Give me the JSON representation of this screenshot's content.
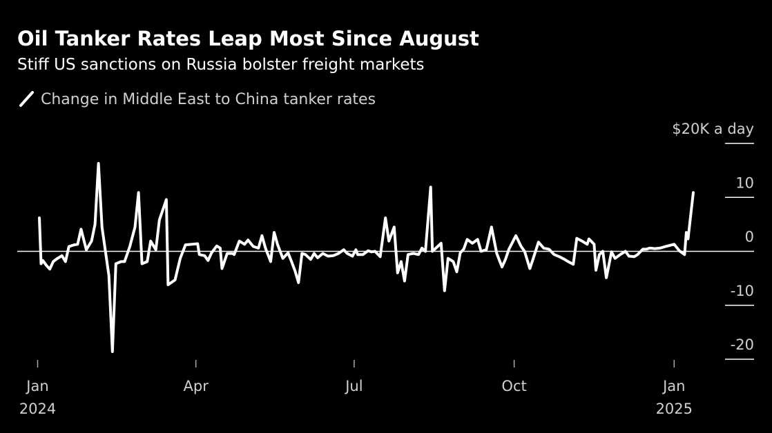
{
  "chart_data": {
    "type": "line",
    "title": "Oil Tanker Rates Leap Most Since August",
    "subtitle": "Stiff US sanctions on Russia bolster freight markets",
    "x": [
      "2024-01-02",
      "2024-01-03",
      "2024-01-04",
      "2024-01-06",
      "2024-01-08",
      "2024-01-10",
      "2024-01-12",
      "2024-01-15",
      "2024-01-17",
      "2024-01-19",
      "2024-01-22",
      "2024-01-24",
      "2024-01-26",
      "2024-01-29",
      "2024-02-01",
      "2024-02-03",
      "2024-02-05",
      "2024-02-07",
      "2024-02-09",
      "2024-02-11",
      "2024-02-13",
      "2024-02-15",
      "2024-02-18",
      "2024-02-20",
      "2024-02-23",
      "2024-02-26",
      "2024-02-28",
      "2024-03-01",
      "2024-03-04",
      "2024-03-06",
      "2024-03-09",
      "2024-03-11",
      "2024-03-15",
      "2024-03-16",
      "2024-03-20",
      "2024-03-23",
      "2024-03-26",
      "2024-04-02",
      "2024-04-03",
      "2024-04-06",
      "2024-04-08",
      "2024-04-10",
      "2024-04-13",
      "2024-04-15",
      "2024-04-16",
      "2024-04-19",
      "2024-04-22",
      "2024-04-23",
      "2024-04-26",
      "2024-04-29",
      "2024-05-01",
      "2024-05-04",
      "2024-05-07",
      "2024-05-09",
      "2024-05-11",
      "2024-05-14",
      "2024-05-16",
      "2024-05-18",
      "2024-05-21",
      "2024-05-24",
      "2024-05-26",
      "2024-05-28",
      "2024-05-30",
      "2024-06-01",
      "2024-06-03",
      "2024-06-06",
      "2024-06-08",
      "2024-06-10",
      "2024-06-13",
      "2024-06-16",
      "2024-06-19",
      "2024-06-22",
      "2024-06-25",
      "2024-06-27",
      "2024-06-30",
      "2024-07-02",
      "2024-07-03",
      "2024-07-06",
      "2024-07-09",
      "2024-07-11",
      "2024-07-13",
      "2024-07-16",
      "2024-07-19",
      "2024-07-21",
      "2024-07-24",
      "2024-07-26",
      "2024-07-28",
      "2024-07-30",
      "2024-08-01",
      "2024-08-04",
      "2024-08-07",
      "2024-08-09",
      "2024-08-11",
      "2024-08-14",
      "2024-08-15",
      "2024-08-18",
      "2024-08-20",
      "2024-08-22",
      "2024-08-24",
      "2024-08-27",
      "2024-08-29",
      "2024-08-31",
      "2024-09-02",
      "2024-09-04",
      "2024-09-07",
      "2024-09-10",
      "2024-09-12",
      "2024-09-15",
      "2024-09-18",
      "2024-09-21",
      "2024-09-24",
      "2024-09-26",
      "2024-09-28",
      "2024-10-02",
      "2024-10-05",
      "2024-10-07",
      "2024-10-10",
      "2024-10-12",
      "2024-10-15",
      "2024-10-18",
      "2024-10-21",
      "2024-10-24",
      "2024-10-27",
      "2024-10-30",
      "2024-11-01",
      "2024-11-04",
      "2024-11-06",
      "2024-11-09",
      "2024-11-12",
      "2024-11-13",
      "2024-11-16",
      "2024-11-17",
      "2024-11-19",
      "2024-11-21",
      "2024-11-23",
      "2024-11-26",
      "2024-11-28",
      "2024-12-01",
      "2024-12-04",
      "2024-12-06",
      "2024-12-09",
      "2024-12-11",
      "2024-12-14",
      "2024-12-16",
      "2024-12-18",
      "2024-12-21",
      "2024-12-24",
      "2024-12-27",
      "2025-01-01",
      "2025-01-04",
      "2025-01-07",
      "2025-01-08",
      "2025-01-09",
      "2025-01-12"
    ],
    "series": [
      {
        "name": "Change in Middle East to China tanker rates",
        "color": "#ffffff",
        "values": [
          6.2,
          -2.3,
          -1.7,
          -2.6,
          -3.3,
          -1.9,
          -1.4,
          -0.8,
          -1.9,
          0.9,
          1.2,
          1.3,
          4.1,
          0.3,
          1.9,
          5.0,
          16.3,
          4.5,
          0,
          -4.5,
          -18.6,
          -2.3,
          -1.9,
          -1.9,
          0.9,
          4.5,
          10.9,
          -2.3,
          -1.9,
          1.9,
          0.3,
          5.8,
          9.6,
          -6.2,
          -5.3,
          -1.3,
          1.2,
          1.4,
          -0.6,
          -0.8,
          -1.7,
          -0.3,
          1.0,
          0.6,
          -3.2,
          -0.4,
          -0.4,
          -0.6,
          1.9,
          1.3,
          2.1,
          0.9,
          0.6,
          2.9,
          0.6,
          -1.9,
          3.5,
          1.2,
          -1.3,
          -0.3,
          -1.9,
          -3.6,
          -5.8,
          -0.4,
          -0.6,
          -1.5,
          -0.4,
          -1.2,
          -0.4,
          -0.9,
          -0.8,
          -0.4,
          0.3,
          -0.4,
          -0.9,
          0.3,
          -0.6,
          -0.6,
          0.1,
          -0.1,
          0,
          -1.0,
          6.2,
          1.9,
          4.5,
          -4.0,
          -1.9,
          -5.5,
          -0.6,
          -0.4,
          -0.6,
          0.6,
          0,
          11.9,
          0,
          0.9,
          1.5,
          -7.3,
          -1.3,
          -1.9,
          -3.8,
          -0.3,
          0.4,
          2.2,
          1.5,
          2.2,
          0,
          0.3,
          4.5,
          -0.4,
          -2.9,
          -1.5,
          0.4,
          2.9,
          0.9,
          0,
          -3.2,
          -1.3,
          1.7,
          0.6,
          0.4,
          -0.6,
          -1.0,
          -1.5,
          -1.9,
          -2.4,
          2.4,
          1.9,
          1.3,
          2.3,
          1.3,
          -3.5,
          -0.6,
          0,
          -4.9,
          -0.1,
          -1.3,
          -0.6,
          0,
          -0.9,
          -1.0,
          -0.6,
          0.4,
          0.4,
          0.6,
          0.5,
          0.6,
          0.9,
          1.3,
          0.1,
          -0.6,
          3.5,
          2.3,
          10.9
        ]
      }
    ],
    "xlim": [
      "2024-01-02",
      "2025-01-12"
    ],
    "xticks": [
      {
        "value": "2024-01-01",
        "label": "Jan",
        "year": "2024"
      },
      {
        "value": "2024-04-01",
        "label": "Apr"
      },
      {
        "value": "2024-07-01",
        "label": "Jul"
      },
      {
        "value": "2024-10-01",
        "label": "Oct"
      },
      {
        "value": "2025-01-01",
        "label": "Jan",
        "year": "2025"
      }
    ],
    "ylim": [
      -20,
      20
    ],
    "yticks": [
      {
        "value": 20,
        "label": "$20K a day"
      },
      10,
      0,
      -10,
      -20
    ],
    "grid": true
  }
}
